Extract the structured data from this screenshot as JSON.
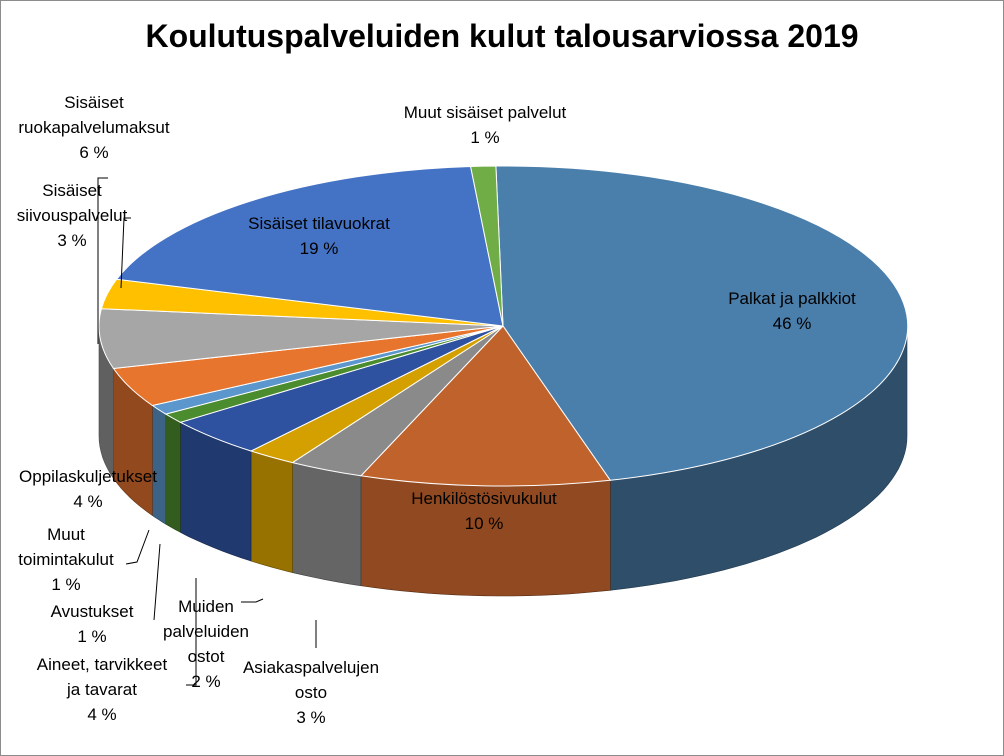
{
  "chart_data": {
    "type": "pie",
    "title": "Koulutuspalveluiden kulut talousarviossa 2019",
    "slices": [
      {
        "label": "Palkat ja palkkiot",
        "percent_label": "46 %",
        "value": 46,
        "color": "#4a7eab"
      },
      {
        "label": "Henkilöstösivukulut",
        "percent_label": "10 %",
        "value": 10,
        "color": "#c0622b"
      },
      {
        "label": "Asiakaspalvelujen osto",
        "percent_label": "3 %",
        "value": 3,
        "color": "#8a8a8a"
      },
      {
        "label": "Muiden palveluiden ostot",
        "percent_label": "2 %",
        "value": 2,
        "color": "#d4a000"
      },
      {
        "label": "Aineet, tarvikkeet ja tavarat",
        "percent_label": "4 %",
        "value": 4,
        "color": "#2e52a0"
      },
      {
        "label": "Avustukset",
        "percent_label": "1 %",
        "value": 1,
        "color": "#4b8c2e"
      },
      {
        "label": "Muut toimintakulut",
        "percent_label": "1 %",
        "value": 1,
        "color": "#5b96cc"
      },
      {
        "label": "Oppilaskuljetukset",
        "percent_label": "4 %",
        "value": 4,
        "color": "#e8752e"
      },
      {
        "label": "Sisäiset ruokapalvelumaksut",
        "percent_label": "6 %",
        "value": 6,
        "color": "#a6a6a6"
      },
      {
        "label": "Sisäiset siivouspalvelut",
        "percent_label": "3 %",
        "value": 3,
        "color": "#ffc000"
      },
      {
        "label": "Sisäiset tilavuokrat",
        "percent_label": "19 %",
        "value": 19,
        "color": "#4472c4"
      },
      {
        "label": "Muut sisäiset palvelut",
        "percent_label": "1 %",
        "value": 1,
        "color": "#70ad47"
      }
    ],
    "label_lines": [
      [
        "Palkat ja palkkiot",
        "46 %"
      ],
      [
        "Henkilöstösivukulut",
        "10 %"
      ],
      [
        "Asiakaspalvelujen",
        "osto",
        "3 %"
      ],
      [
        "Muiden",
        "palveluiden",
        "ostot",
        "2 %"
      ],
      [
        "Aineet, tarvikkeet",
        "ja tavarat",
        "4 %"
      ],
      [
        "Avustukset",
        "1 %"
      ],
      [
        "Muut",
        "toimintakulut",
        "1 %"
      ],
      [
        "Oppilaskuljetukset",
        "4 %"
      ],
      [
        "Sisäiset",
        "ruokapalvelumaksut",
        "6 %"
      ],
      [
        "Sisäiset",
        "siivouspalvelut",
        "3 %"
      ],
      [
        "Sisäiset tilavuokrat",
        "19 %"
      ],
      [
        "Muut sisäiset palvelut",
        "1 %"
      ]
    ],
    "three_d": true,
    "legend": "none"
  }
}
